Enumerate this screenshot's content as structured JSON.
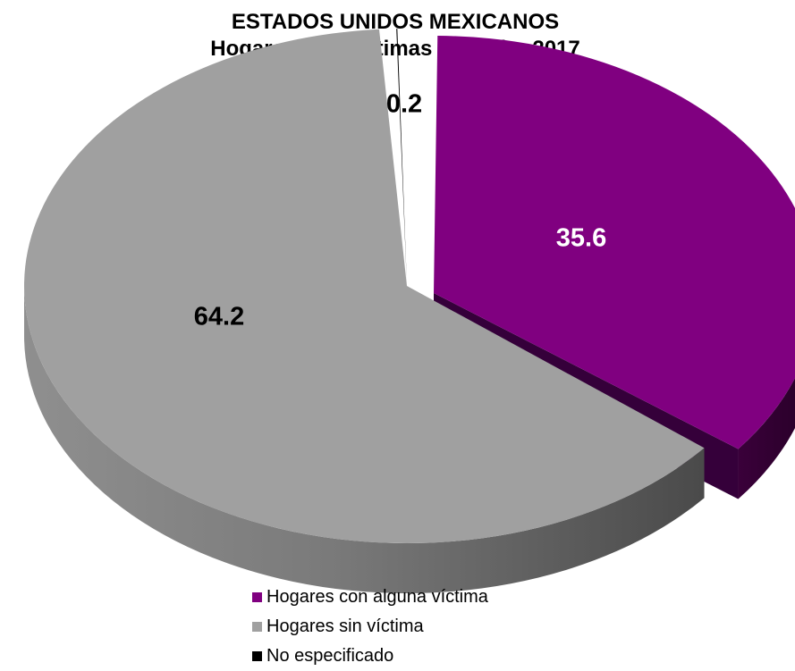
{
  "chart_data": {
    "type": "pie",
    "title": "ESTADOS UNIDOS MEXICANOS",
    "subtitle": "Hogares con víctimas de delito 2017",
    "categories": [
      "Hogares con alguna víctima",
      "Hogares sin víctima",
      "No especificado"
    ],
    "values": [
      35.6,
      64.2,
      0.2
    ],
    "value_labels": [
      "35.6",
      "64.2",
      "0.2"
    ],
    "colors": [
      "#800080",
      "#a0a0a0",
      "#000000"
    ],
    "label_colors": [
      "#ffffff",
      "#000000",
      "#000000"
    ],
    "style": "3d-exploded",
    "legend_position": "bottom"
  }
}
